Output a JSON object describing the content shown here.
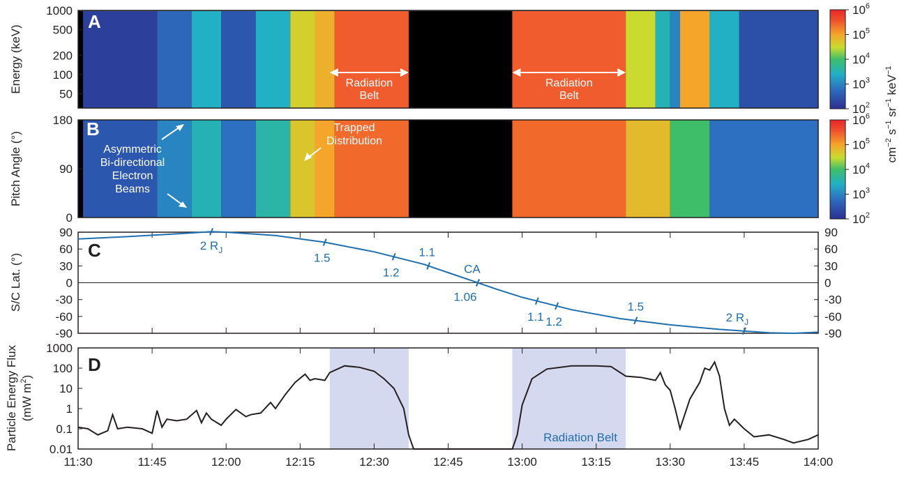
{
  "chart_data": [
    {
      "panel": "A",
      "type": "heatmap",
      "ylabel": "Energy (keV)",
      "yscale": "log",
      "ylim": [
        30,
        1000
      ],
      "yticks": [
        "1000",
        "500",
        "200",
        "100",
        "50"
      ],
      "yticks_values": [
        1000,
        500,
        200,
        100,
        50
      ],
      "colorbar": {
        "ticks": [
          "10",
          "10",
          "10",
          "10",
          "10"
        ],
        "exponents": [
          "6",
          "5",
          "4",
          "3",
          "2"
        ],
        "scale": "log",
        "range": [
          100,
          1000000
        ]
      },
      "annotations": [
        {
          "text1": "Radiation",
          "text2": "Belt",
          "span": [
            "12:21",
            "12:37"
          ]
        },
        {
          "text1": "Radiation",
          "text2": "Belt",
          "span": [
            "12:58",
            "13:21"
          ]
        }
      ],
      "bands": [
        {
          "start": "11:31",
          "end": "11:46",
          "level": 2.2
        },
        {
          "start": "11:46",
          "end": "11:53",
          "level": 2.7
        },
        {
          "start": "11:53",
          "end": "11:59",
          "level": 3.4
        },
        {
          "start": "11:59",
          "end": "12:06",
          "level": 2.5
        },
        {
          "start": "12:06",
          "end": "12:13",
          "level": 3.4
        },
        {
          "start": "12:13",
          "end": "12:18",
          "level": 4.6
        },
        {
          "start": "12:18",
          "end": "12:22",
          "level": 4.9
        },
        {
          "start": "12:22",
          "end": "12:37",
          "level": 5.5
        },
        {
          "start": "12:37",
          "end": "12:58",
          "level": 0
        },
        {
          "start": "12:58",
          "end": "13:21",
          "level": 5.5
        },
        {
          "start": "13:21",
          "end": "13:27",
          "level": 4.5
        },
        {
          "start": "13:27",
          "end": "13:30",
          "level": 3.5
        },
        {
          "start": "13:30",
          "end": "13:32",
          "level": 3.0
        },
        {
          "start": "13:32",
          "end": "13:38",
          "level": 5.0
        },
        {
          "start": "13:38",
          "end": "13:44",
          "level": 3.4
        },
        {
          "start": "13:44",
          "end": "14:00",
          "level": 2.4
        }
      ]
    },
    {
      "panel": "B",
      "type": "heatmap",
      "ylabel": "Pitch Angle (°)",
      "ylim": [
        0,
        180
      ],
      "yticks": [
        "180",
        "90",
        "0"
      ],
      "yticks_values": [
        180,
        90,
        0
      ],
      "colorbar": {
        "ticks": [
          "10",
          "10",
          "10",
          "10",
          "10"
        ],
        "exponents": [
          "6",
          "5",
          "4",
          "3",
          "2"
        ],
        "scale": "log",
        "range": [
          100,
          1000000
        ]
      },
      "annotations": [
        {
          "lines": [
            "Asymmetric",
            "Bi-directional",
            "Electron",
            "Beams"
          ]
        },
        {
          "lines": [
            "Trapped",
            "Distribution"
          ]
        }
      ],
      "bands": [
        {
          "start": "11:31",
          "end": "11:46",
          "level": 2.5
        },
        {
          "start": "11:46",
          "end": "11:53",
          "level": 3.0
        },
        {
          "start": "11:53",
          "end": "11:59",
          "level": 3.5
        },
        {
          "start": "11:59",
          "end": "12:06",
          "level": 2.8
        },
        {
          "start": "12:06",
          "end": "12:13",
          "level": 3.6
        },
        {
          "start": "12:13",
          "end": "12:18",
          "level": 4.7
        },
        {
          "start": "12:18",
          "end": "12:22",
          "level": 5.0
        },
        {
          "start": "12:22",
          "end": "12:37",
          "level": 5.4
        },
        {
          "start": "12:37",
          "end": "12:58",
          "level": 0
        },
        {
          "start": "12:58",
          "end": "13:21",
          "level": 5.4
        },
        {
          "start": "13:21",
          "end": "13:30",
          "level": 4.8
        },
        {
          "start": "13:30",
          "end": "13:38",
          "level": 4.0
        },
        {
          "start": "13:38",
          "end": "14:00",
          "level": 2.8
        }
      ]
    },
    {
      "panel": "C",
      "type": "line",
      "ylabel": "S/C Lat. (°)",
      "ylim": [
        -90,
        90
      ],
      "yticks": [
        "90",
        "60",
        "30",
        "0",
        "-30",
        "-60",
        "-90"
      ],
      "yticks_values": [
        90,
        60,
        30,
        0,
        -30,
        -60,
        -90
      ],
      "series": [
        {
          "x": [
            "11:30",
            "11:40",
            "11:50",
            "11:57",
            "12:00",
            "12:10",
            "12:20",
            "12:30",
            "12:40",
            "12:45",
            "12:50",
            "12:55",
            "13:00",
            "13:10",
            "13:20",
            "13:30",
            "13:40",
            "13:50",
            "13:55",
            "14:00"
          ],
          "y": [
            78,
            82,
            87,
            91,
            90,
            84,
            72,
            55,
            33,
            18,
            3,
            -12,
            -26,
            -48,
            -64,
            -75,
            -83,
            -89,
            -90,
            -88
          ]
        }
      ],
      "markers": [
        {
          "time": "11:57",
          "label": "2 R",
          "sub": "J"
        },
        {
          "time": "12:20",
          "label": "1.5"
        },
        {
          "time": "12:34",
          "label": "1.2"
        },
        {
          "time": "12:41",
          "label": "1.1"
        },
        {
          "time": "12:51",
          "label": "CA"
        },
        {
          "time": "12:51",
          "label": "1.06"
        },
        {
          "time": "13:03",
          "label": "1.1"
        },
        {
          "time": "13:07",
          "label": "1.2"
        },
        {
          "time": "13:23",
          "label": "1.5"
        },
        {
          "time": "13:45",
          "label": "2 R",
          "sub": "J"
        }
      ]
    },
    {
      "panel": "D",
      "type": "line",
      "ylabel": "Particle Energy Flux",
      "ylabel2": "(mW m",
      "yscale": "log",
      "ylim": [
        0.01,
        1000
      ],
      "yticks": [
        "1000",
        "100",
        "10",
        "1",
        "0.1",
        "0.01"
      ],
      "yticks_values": [
        1000,
        100,
        10,
        1,
        0.1,
        0.01
      ],
      "xlabel": "",
      "xticks": [
        "11:30",
        "11:45",
        "12:00",
        "12:15",
        "12:30",
        "12:45",
        "13:00",
        "13:15",
        "13:30",
        "13:45",
        "14:00"
      ],
      "shaded_regions": [
        {
          "start": "12:21",
          "end": "12:37"
        },
        {
          "start": "12:58",
          "end": "13:21"
        }
      ],
      "region_label": "Radiation Belt",
      "series": [
        {
          "x": [
            "11:30",
            "11:32",
            "11:34",
            "11:36",
            "11:37",
            "11:38",
            "11:40",
            "11:43",
            "11:45",
            "11:46",
            "11:47",
            "11:48",
            "11:50",
            "11:52",
            "11:54",
            "11:55",
            "11:56",
            "11:57",
            "11:59",
            "12:00",
            "12:02",
            "12:04",
            "12:05",
            "12:07",
            "12:09",
            "12:10",
            "12:12",
            "12:14",
            "12:16",
            "12:17",
            "12:18",
            "12:20",
            "12:21",
            "12:24",
            "12:27",
            "12:30",
            "12:32",
            "12:34",
            "12:36",
            "12:37",
            "12:38",
            "12:58",
            "12:59",
            "13:00",
            "13:02",
            "13:05",
            "13:10",
            "13:15",
            "13:18",
            "13:21",
            "13:24",
            "13:27",
            "13:28",
            "13:29",
            "13:30",
            "13:31",
            "13:32",
            "13:34",
            "13:36",
            "13:37",
            "13:38",
            "13:39",
            "13:40",
            "13:41",
            "13:42",
            "13:43",
            "13:45",
            "13:47",
            "13:50",
            "13:53",
            "13:55",
            "13:58",
            "14:00"
          ],
          "y": [
            0.12,
            0.1,
            0.05,
            0.08,
            0.5,
            0.1,
            0.12,
            0.1,
            0.06,
            0.8,
            0.12,
            0.3,
            0.25,
            0.3,
            0.8,
            0.2,
            0.6,
            0.3,
            0.15,
            0.3,
            0.9,
            0.4,
            0.5,
            0.6,
            2,
            1,
            5,
            20,
            50,
            25,
            30,
            25,
            60,
            130,
            110,
            70,
            30,
            10,
            1,
            0.05,
            0.01,
            0.01,
            0.05,
            1.5,
            30,
            90,
            130,
            130,
            120,
            40,
            35,
            25,
            60,
            15,
            8,
            1,
            0.1,
            3,
            20,
            100,
            80,
            200,
            40,
            1,
            0.15,
            0.3,
            0.1,
            0.04,
            0.05,
            0.03,
            0.02,
            0.03,
            0.05
          ]
        }
      ]
    }
  ]
}
